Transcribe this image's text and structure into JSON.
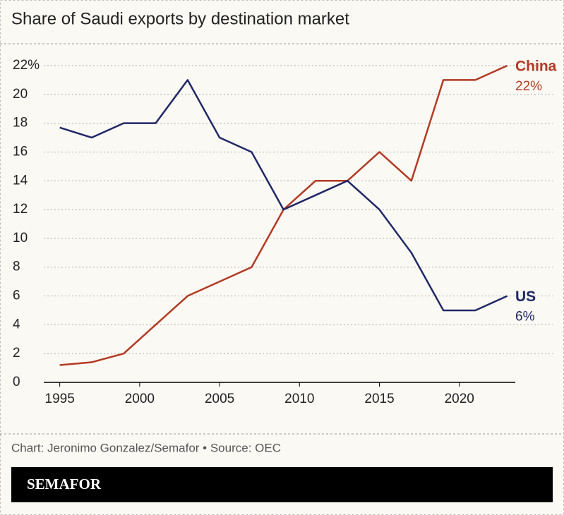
{
  "chart_data": {
    "type": "line",
    "title": "Share of Saudi exports by destination market",
    "x": [
      1995,
      1997,
      1999,
      2001,
      2003,
      2005,
      2007,
      2009,
      2011,
      2013,
      2015,
      2017,
      2019,
      2021,
      2023
    ],
    "series": [
      {
        "name": "China",
        "color": "#b23a22",
        "end_label": "22%",
        "values": [
          1.2,
          1.4,
          2,
          4,
          6,
          7,
          8,
          12,
          14,
          14,
          16,
          14,
          21,
          21,
          22
        ]
      },
      {
        "name": "US",
        "color": "#1f2766",
        "end_label": "6%",
        "values": [
          17.7,
          17,
          18,
          18,
          21,
          17,
          16,
          12,
          13,
          14,
          12,
          9,
          5,
          5,
          6
        ]
      }
    ],
    "xlim": [
      1994,
      2023.5
    ],
    "xticks": [
      1995,
      2000,
      2005,
      2010,
      2015,
      2020
    ],
    "ylim": [
      0,
      22
    ],
    "yticks": [
      0,
      2,
      4,
      6,
      8,
      10,
      12,
      14,
      16,
      18,
      20,
      {
        "value": 22,
        "label": "22%"
      }
    ],
    "grid": true,
    "source": "Chart: Jeronimo Gonzalez/Semafor • Source: OEC",
    "brand": "SEMAFOR"
  }
}
